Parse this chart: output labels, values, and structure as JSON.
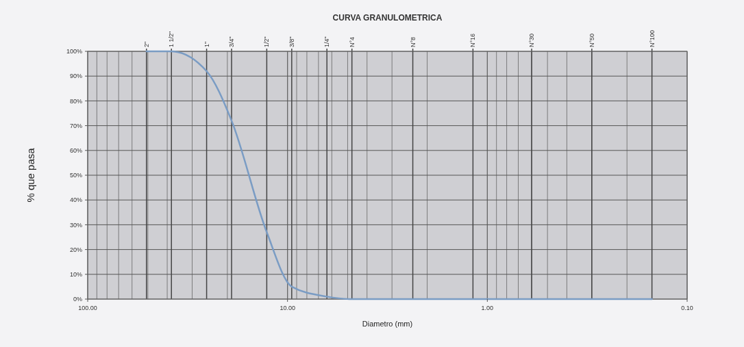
{
  "chart_data": {
    "type": "line",
    "title": "CURVA GRANULOMETRICA",
    "xlabel": "Diametro (mm)",
    "ylabel": "% que pasa",
    "log": "x",
    "grid": true,
    "marker": "none",
    "line_style": "solid",
    "xlim": [
      100,
      0.1
    ],
    "xticks": [
      {
        "value": 100,
        "label": "100.00"
      },
      {
        "value": 90,
        "label": null
      },
      {
        "value": 80,
        "label": null
      },
      {
        "value": 70,
        "label": null
      },
      {
        "value": 60,
        "label": null
      },
      {
        "value": 50,
        "label": null
      },
      {
        "value": 40,
        "label": null
      },
      {
        "value": 30,
        "label": null
      },
      {
        "value": 20,
        "label": null
      },
      {
        "value": 10,
        "label": "10.00"
      },
      {
        "value": 9,
        "label": null
      },
      {
        "value": 8,
        "label": null
      },
      {
        "value": 7,
        "label": null
      },
      {
        "value": 6,
        "label": null
      },
      {
        "value": 5,
        "label": null
      },
      {
        "value": 4,
        "label": null
      },
      {
        "value": 3,
        "label": null
      },
      {
        "value": 2,
        "label": null
      },
      {
        "value": 1,
        "label": "1.00"
      },
      {
        "value": 0.9,
        "label": null
      },
      {
        "value": 0.8,
        "label": null
      },
      {
        "value": 0.7,
        "label": null
      },
      {
        "value": 0.6,
        "label": null
      },
      {
        "value": 0.5,
        "label": null
      },
      {
        "value": 0.4,
        "label": null
      },
      {
        "value": 0.3,
        "label": null
      },
      {
        "value": 0.2,
        "label": null
      },
      {
        "value": 0.1,
        "label": "0.10"
      }
    ],
    "annotations": [
      "2\"",
      "1 1/2\"",
      "1\"",
      "3/4\"",
      "1/2\"",
      "3/8\"",
      "1/4\"",
      "N°4",
      "N°8",
      "N°16",
      "N°30",
      "N°50",
      "N°100"
    ],
    "ylim": [
      0,
      100
    ],
    "yticks": [
      {
        "value": 0,
        "label": "0%"
      },
      {
        "value": 10,
        "label": "10%"
      },
      {
        "value": 20,
        "label": "20%"
      },
      {
        "value": 30,
        "label": "30%"
      },
      {
        "value": 40,
        "label": "40%"
      },
      {
        "value": 50,
        "label": "50%"
      },
      {
        "value": 60,
        "label": "60%"
      },
      {
        "value": 70,
        "label": "70%"
      },
      {
        "value": 80,
        "label": "80%"
      },
      {
        "value": 90,
        "label": "90%"
      },
      {
        "value": 100,
        "label": "100%"
      }
    ],
    "series": [
      {
        "color": "#7a9cc4",
        "x": [
          50.8,
          38.1,
          25.4,
          19.05,
          12.7,
          9.525,
          6.35,
          4.76,
          2.36,
          1.18,
          0.6,
          0.3,
          0.15
        ],
        "values": [
          100,
          100,
          92,
          72,
          27,
          5,
          1,
          0,
          0,
          0,
          0,
          0,
          0
        ]
      }
    ]
  }
}
